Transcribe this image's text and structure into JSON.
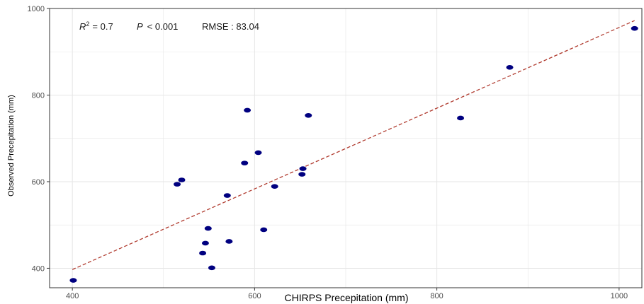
{
  "chart_data": {
    "type": "scatter",
    "xlabel": "CHIRPS Precepitation (mm)",
    "ylabel": "Observed Precepitation (mm)",
    "xlim": [
      375,
      1025
    ],
    "ylim": [
      355,
      1000
    ],
    "x_ticks": [
      400,
      600,
      800,
      1000
    ],
    "y_ticks": [
      400,
      600,
      800,
      1000
    ],
    "grid": true,
    "annotation": {
      "r2_symbol": "R",
      "r2_exp": "2",
      "r2_value": "= 0.7",
      "p_symbol": "P",
      "p_value": "< 0.001",
      "rmse": "RMSE : 83.04"
    },
    "colors": {
      "points": "#000080",
      "fit_line": "#b03a2e",
      "grid": "#e5e5e5",
      "frame": "#333333"
    },
    "fit_line": {
      "x": [
        400,
        1017
      ],
      "y": [
        397,
        972
      ],
      "style": "dashed"
    },
    "points": [
      {
        "x": 401,
        "y": 372
      },
      {
        "x": 515,
        "y": 594
      },
      {
        "x": 520,
        "y": 604
      },
      {
        "x": 543,
        "y": 435
      },
      {
        "x": 546,
        "y": 458
      },
      {
        "x": 549,
        "y": 492
      },
      {
        "x": 553,
        "y": 401
      },
      {
        "x": 570,
        "y": 568
      },
      {
        "x": 572,
        "y": 462
      },
      {
        "x": 589,
        "y": 643
      },
      {
        "x": 592,
        "y": 765
      },
      {
        "x": 604,
        "y": 667
      },
      {
        "x": 610,
        "y": 489
      },
      {
        "x": 622,
        "y": 589
      },
      {
        "x": 652,
        "y": 617
      },
      {
        "x": 653,
        "y": 630
      },
      {
        "x": 659,
        "y": 753
      },
      {
        "x": 826,
        "y": 747
      },
      {
        "x": 880,
        "y": 864
      },
      {
        "x": 1017,
        "y": 954
      }
    ]
  }
}
